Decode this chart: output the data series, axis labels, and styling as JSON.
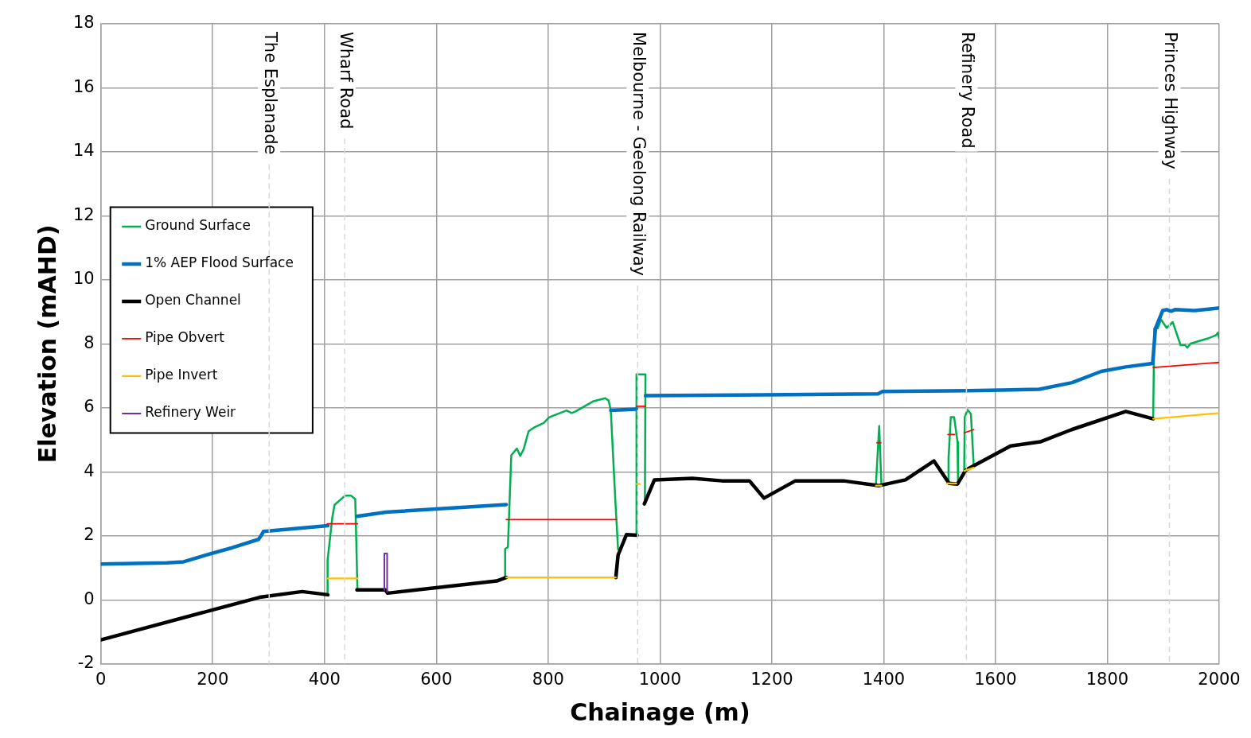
{
  "chart_data": {
    "type": "line",
    "xlabel": "Chainage (m)",
    "ylabel": "Elevation (mAHD)",
    "xlim": [
      0,
      2000
    ],
    "xticks": [
      0,
      200,
      400,
      600,
      800,
      1000,
      1200,
      1400,
      1600,
      1800,
      2000
    ],
    "ylim": [
      -2,
      18
    ],
    "yticks": [
      -2,
      0,
      2,
      4,
      6,
      8,
      10,
      12,
      14,
      16,
      18
    ],
    "grid": true,
    "legend": "left",
    "marker": "none",
    "series": [
      {
        "name": "Ground Surface",
        "color": "#00b050",
        "x": [
          405,
          405,
          406,
          414,
          418,
          437,
          447,
          455,
          459,
          null,
          723,
          723,
          728,
          734,
          744,
          750,
          756,
          765,
          776,
          792,
          802,
          833,
          842,
          849,
          880,
          902,
          908,
          912,
          920,
          925,
          null,
          958,
          958,
          974,
          973,
          null,
          1386,
          1392,
          1396,
          null,
          1516,
          1516,
          1520,
          1526,
          1532,
          1533,
          null,
          1544,
          1545,
          1550,
          1556,
          1561,
          null,
          1882,
          1884,
          1890,
          1896,
          1906,
          1917,
          1931,
          1939,
          1943,
          1949,
          1980,
          1994,
          1998,
          2000
        ],
        "values": [
          0.16,
          1.19,
          1.24,
          2.58,
          2.97,
          3.26,
          3.26,
          3.15,
          0.28,
          null,
          0.7,
          1.59,
          1.65,
          4.52,
          4.73,
          4.5,
          4.7,
          5.27,
          5.4,
          5.53,
          5.71,
          5.92,
          5.84,
          5.89,
          6.2,
          6.3,
          6.23,
          5.92,
          3.15,
          1.58,
          null,
          2.04,
          7.05,
          7.05,
          3.05,
          null,
          3.57,
          5.43,
          3.57,
          null,
          3.64,
          4.42,
          5.71,
          5.71,
          4.94,
          3.64,
          null,
          4.06,
          5.71,
          5.94,
          5.81,
          4.21,
          null,
          5.71,
          8.48,
          8.48,
          8.76,
          8.5,
          8.68,
          7.96,
          7.96,
          7.88,
          8.01,
          8.17,
          8.27,
          8.35,
          8.17
        ]
      },
      {
        "name": "1% AEP Flood Surface",
        "color": "#0070c0",
        "x": [
          0,
          118,
          148,
          192,
          235,
          282,
          287,
          291,
          406,
          null,
          458,
          510,
          725,
          null,
          912,
          958,
          null,
          974,
          1184,
          1390,
          1398,
          1551,
          1678,
          1737,
          1789,
          1833,
          1881,
          1886,
          1899,
          1906,
          1914,
          1921,
          1956,
          2000
        ],
        "values": [
          1.12,
          1.16,
          1.19,
          1.42,
          1.63,
          1.89,
          2.02,
          2.14,
          2.32,
          null,
          2.61,
          2.74,
          2.98,
          null,
          5.92,
          5.96,
          null,
          6.38,
          6.41,
          6.44,
          6.51,
          6.54,
          6.58,
          6.79,
          7.14,
          7.28,
          7.39,
          8.48,
          9.04,
          9.07,
          9.02,
          9.07,
          9.04,
          9.12
        ]
      },
      {
        "name": "Open Channel",
        "color": "#000000",
        "x": [
          0,
          284,
          360,
          406,
          null,
          458,
          509,
          513,
          708,
          725,
          null,
          921,
          925,
          940,
          959,
          null,
          972,
          990,
          1058,
          1111,
          1160,
          1186,
          1242,
          1328,
          1392,
          1439,
          1490,
          1517,
          1532,
          1547,
          1627,
          1680,
          1736,
          1833,
          1882
        ],
        "values": [
          -1.25,
          0.08,
          0.26,
          0.16,
          null,
          0.31,
          0.31,
          0.21,
          0.59,
          0.7,
          null,
          0.7,
          1.4,
          2.04,
          2.02,
          null,
          3.0,
          3.75,
          3.8,
          3.72,
          3.72,
          3.18,
          3.72,
          3.72,
          3.57,
          3.75,
          4.34,
          3.64,
          3.62,
          4.06,
          4.81,
          4.94,
          5.32,
          5.89,
          5.66
        ]
      },
      {
        "name": "Pipe Obvert",
        "color": "#ff0000",
        "x": [
          405,
          459,
          null,
          725,
          922,
          null,
          958,
          974,
          null,
          1388,
          1395,
          null,
          1515,
          1527,
          null,
          1544,
          1561,
          null,
          1882,
          2000
        ],
        "values": [
          2.38,
          2.38,
          null,
          2.51,
          2.51,
          null,
          6.05,
          6.05,
          null,
          4.91,
          4.91,
          null,
          5.17,
          5.17,
          null,
          5.22,
          5.32,
          null,
          7.26,
          7.42
        ]
      },
      {
        "name": "Pipe Invert",
        "color": "#ffc000",
        "x": [
          405,
          459,
          null,
          725,
          921,
          null,
          958,
          964,
          null,
          1386,
          1396,
          null,
          1513,
          1530,
          null,
          1544,
          1561,
          null,
          1882,
          2000
        ],
        "values": [
          0.67,
          0.67,
          null,
          0.7,
          0.7,
          null,
          3.62,
          3.62,
          null,
          3.57,
          3.57,
          null,
          3.64,
          3.64,
          null,
          4.03,
          4.13,
          null,
          5.66,
          5.84
        ]
      },
      {
        "name": "Refinery Weir",
        "color": "#7030a0",
        "x": [
          507,
          507,
          512,
          512
        ],
        "values": [
          0.31,
          1.45,
          1.45,
          0.25
        ]
      }
    ],
    "ref_lines": [
      {
        "axis": "x",
        "value": 301,
        "label": "The Esplanade",
        "color": "#d9d9d9",
        "line_style": "dashed"
      },
      {
        "axis": "x",
        "value": 436,
        "label": "Wharf Road",
        "color": "#d9d9d9",
        "line_style": "dashed"
      },
      {
        "axis": "x",
        "value": 960,
        "label": "Melbourne - Geelong Railway",
        "color": "#d9d9d9",
        "line_style": "dashed"
      },
      {
        "axis": "x",
        "value": 1548,
        "label": "Refinery Road",
        "color": "#d9d9d9",
        "line_style": "dashed"
      },
      {
        "axis": "x",
        "value": 1911,
        "label": "Princes Highway",
        "color": "#d9d9d9",
        "line_style": "dashed"
      }
    ]
  }
}
